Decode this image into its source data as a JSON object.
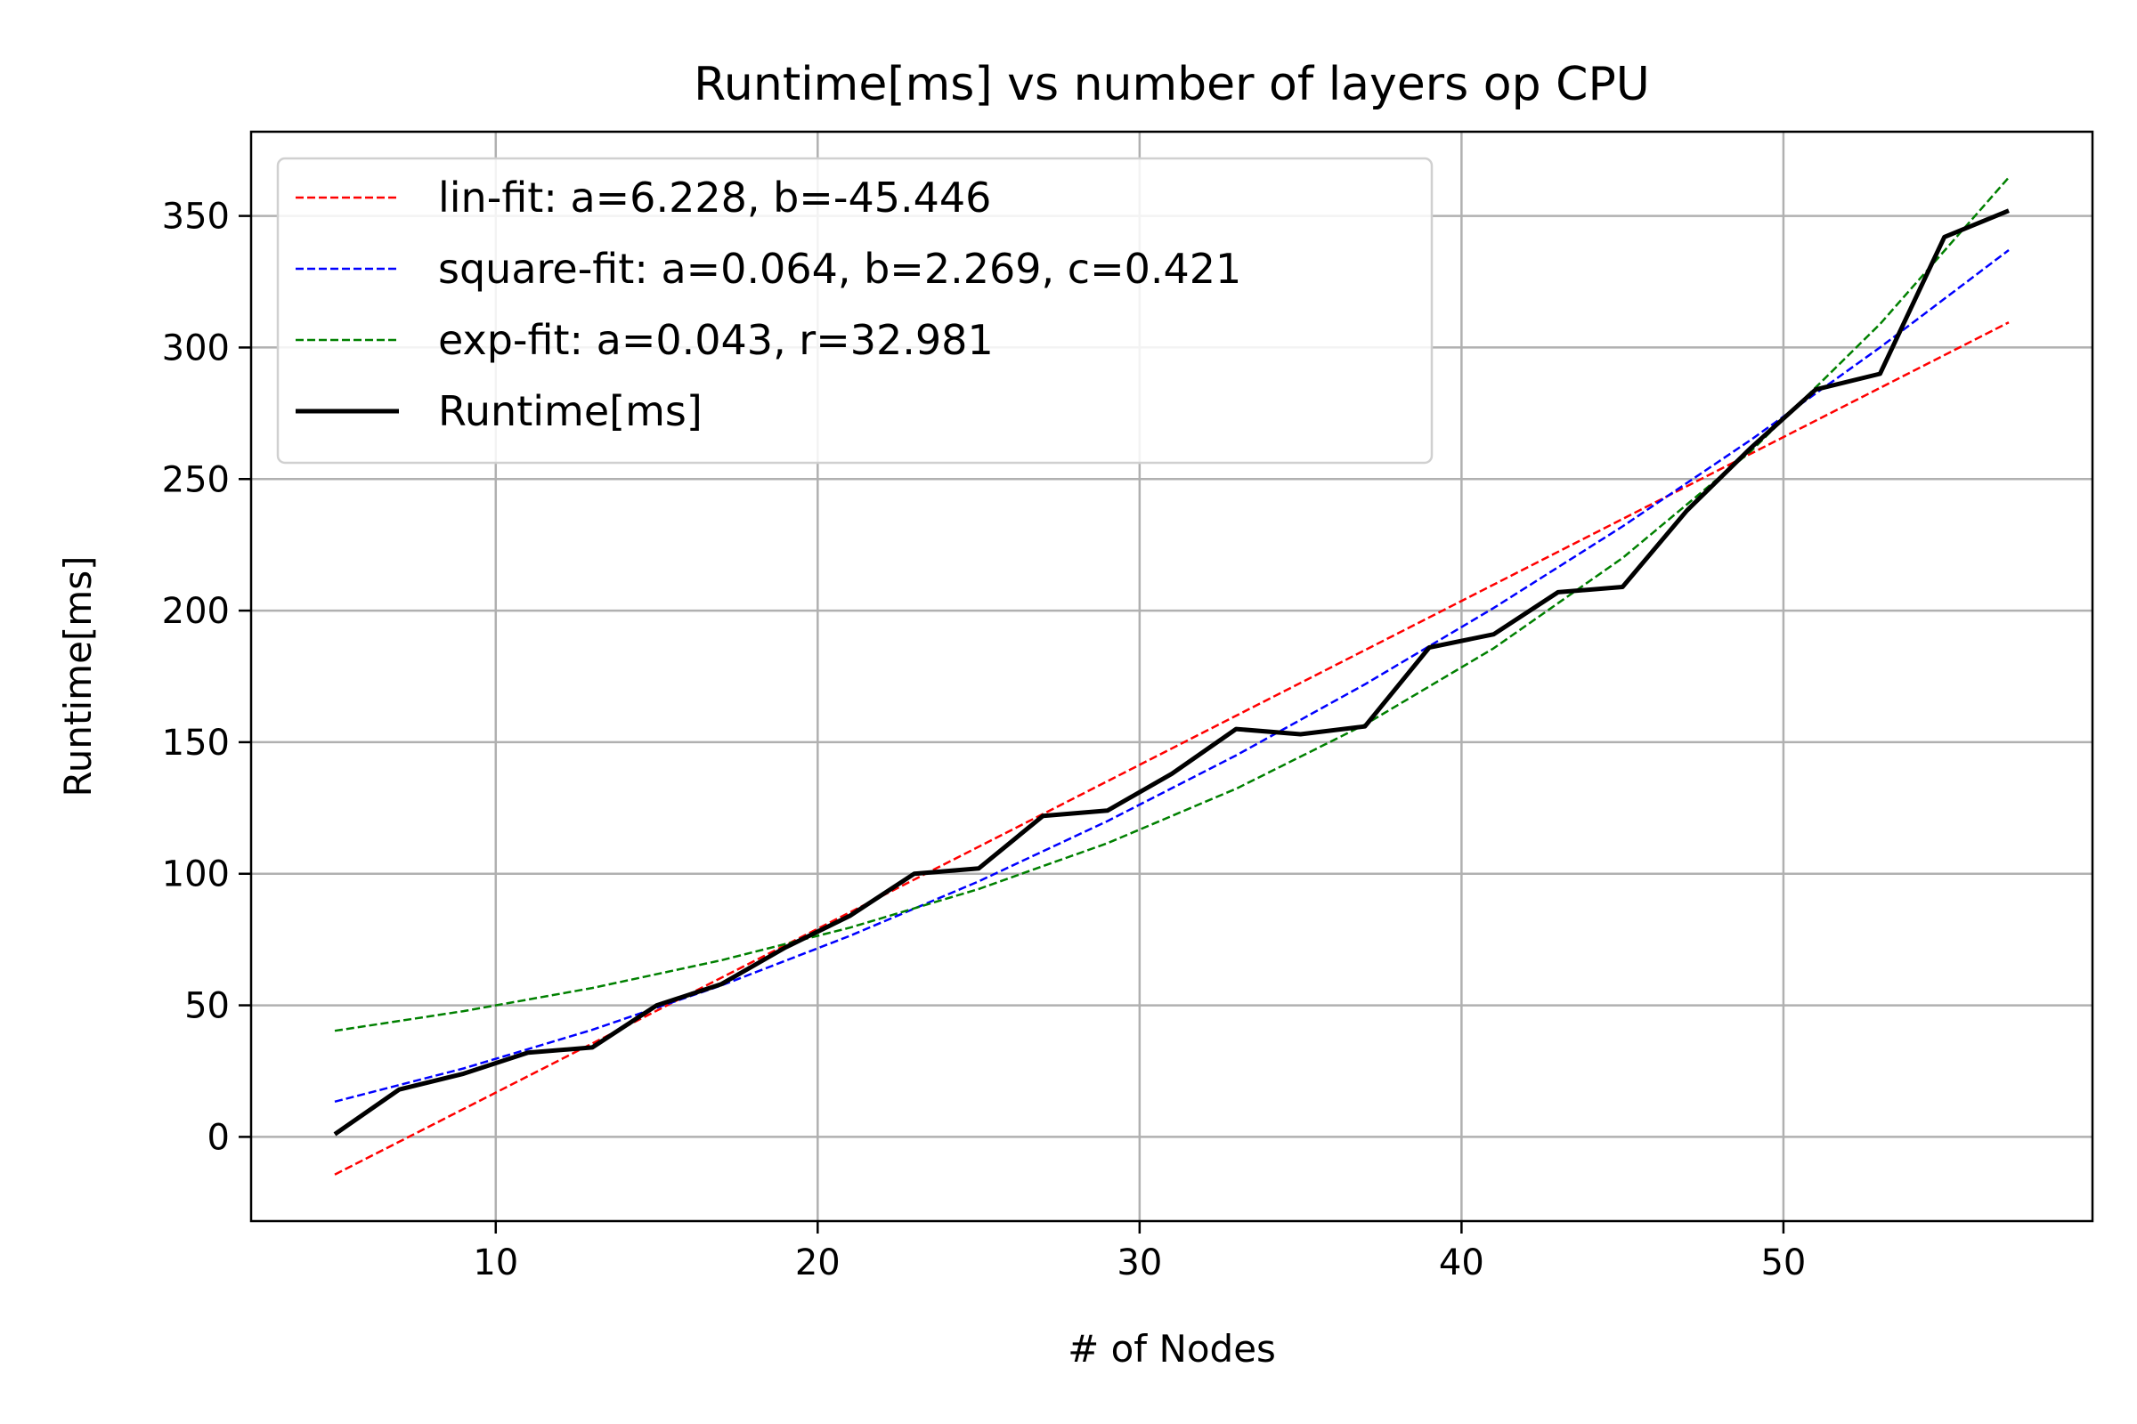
{
  "chart_data": {
    "type": "line",
    "title": "Runtime[ms] vs number of layers op CPU",
    "xlabel": "# of Nodes",
    "ylabel": "Runtime[ms]",
    "xlim": [
      2.4,
      59.6
    ],
    "ylim": [
      -32,
      382
    ],
    "xticks": [
      10,
      20,
      30,
      40,
      50
    ],
    "yticks": [
      0,
      50,
      100,
      150,
      200,
      250,
      300,
      350
    ],
    "grid": true,
    "legend_position": "upper-left",
    "series": [
      {
        "name": "lin-fit: a=6.228, b=-45.446",
        "kind": "fit",
        "style": "dashed",
        "color": "#ff0000",
        "x": [
          5,
          57
        ],
        "y": [
          -14.306,
          309.55
        ]
      },
      {
        "name": "square-fit: a=0.064, b=2.269, c=0.421",
        "kind": "fit",
        "style": "dashed",
        "color": "#0000ff",
        "x": [
          5,
          9,
          13,
          17,
          21,
          25,
          29,
          33,
          37,
          41,
          45,
          49,
          53,
          57
        ],
        "y": [
          13.4,
          26.0,
          40.7,
          57.5,
          76.4,
          97.1,
          120.0,
          145.0,
          172.0,
          201.0,
          232.0,
          265.0,
          300.0,
          337.0
        ]
      },
      {
        "name": "exp-fit: a=0.043, r=32.981",
        "kind": "fit",
        "style": "dashed",
        "color": "#008000",
        "x": [
          5,
          9,
          13,
          17,
          21,
          25,
          29,
          33,
          37,
          41,
          45,
          49,
          53,
          57
        ],
        "y": [
          40.3,
          47.8,
          56.6,
          67.1,
          79.5,
          94.2,
          111.6,
          132.3,
          156.7,
          185.7,
          220.0,
          260.7,
          308.9,
          364.6
        ]
      },
      {
        "name": "Runtime[ms]",
        "kind": "data",
        "style": "solid",
        "color": "#000000",
        "x": [
          5,
          7,
          9,
          11,
          13,
          15,
          17,
          19,
          21,
          23,
          25,
          27,
          29,
          31,
          33,
          35,
          37,
          39,
          41,
          43,
          45,
          47,
          49,
          51,
          53,
          55,
          57
        ],
        "y": [
          1,
          18,
          24,
          32,
          34,
          50,
          58,
          72,
          84,
          100,
          102,
          122,
          124,
          138,
          155,
          153,
          156,
          186,
          191,
          207,
          209,
          238,
          262,
          284,
          290,
          342,
          352
        ]
      }
    ]
  }
}
